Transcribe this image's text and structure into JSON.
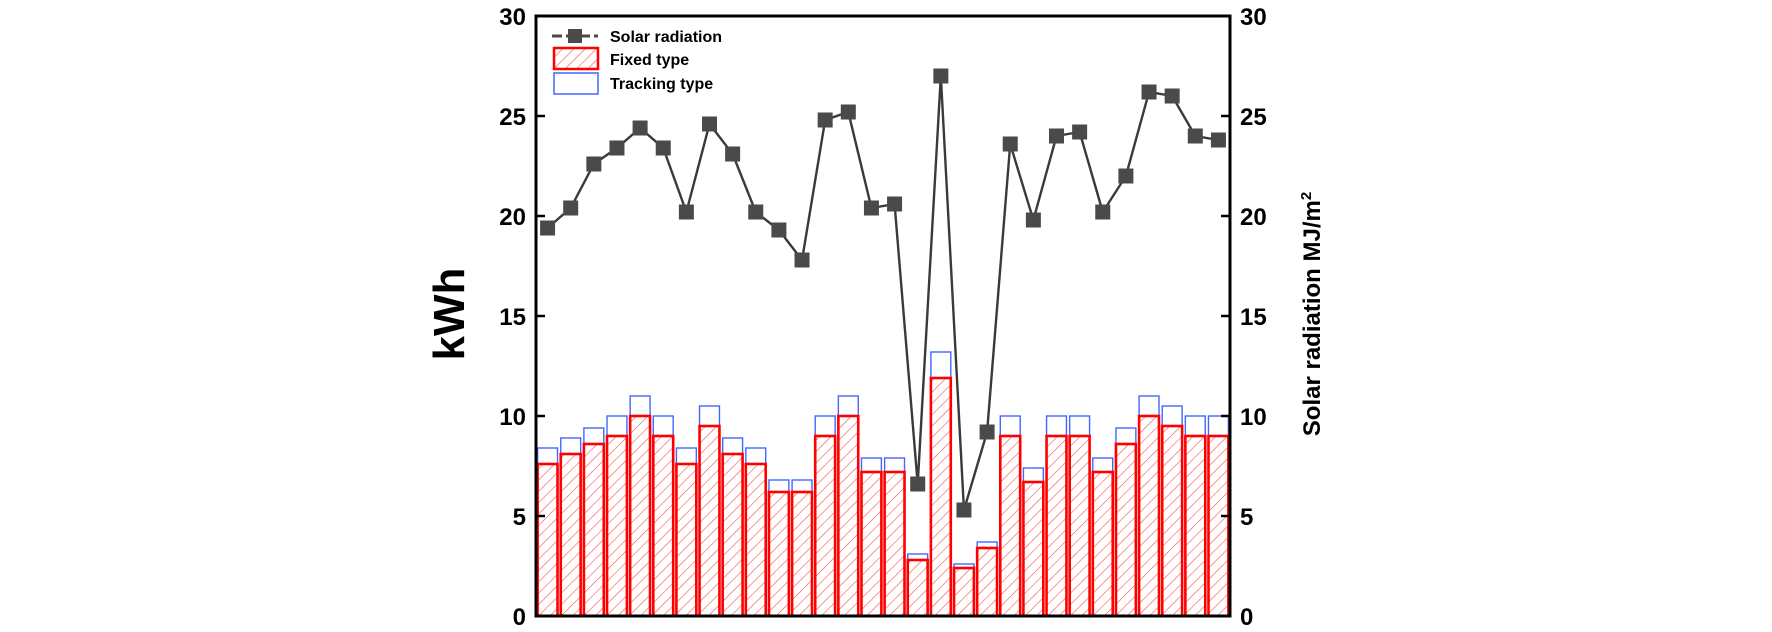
{
  "chart_data": {
    "type": "bar",
    "ylabel": "kWh",
    "ylabel_right": "Solar radiation MJ/m",
    "ylabel_right_superscript": "2",
    "ylim": [
      0,
      30
    ],
    "ylim_right": [
      0,
      30
    ],
    "yticks": [
      "0",
      "5",
      "10",
      "15",
      "20",
      "25",
      "30"
    ],
    "yticks_right": [
      "0",
      "5",
      "10",
      "15",
      "20",
      "25",
      "30"
    ],
    "grid": false,
    "legend_position": "top-left",
    "series": [
      {
        "name": "Solar radiation",
        "type": "line",
        "axis": "right",
        "color": "#4a4a4a",
        "marker": "square",
        "values": [
          19.4,
          20.4,
          22.6,
          23.4,
          24.4,
          23.4,
          20.2,
          24.6,
          23.1,
          20.2,
          19.3,
          17.8,
          24.8,
          25.2,
          20.4,
          20.6,
          6.6,
          27.0,
          5.3,
          9.2,
          23.6,
          19.8,
          24.0,
          24.2,
          20.2,
          22.0,
          26.2,
          26.0,
          24.0,
          23.8
        ]
      },
      {
        "name": "Fixed type",
        "type": "bar",
        "axis": "left",
        "color": "#ff0000",
        "pattern": "hatched",
        "values": [
          7.6,
          8.1,
          8.6,
          9.0,
          10.0,
          9.0,
          7.6,
          9.5,
          8.1,
          7.6,
          6.2,
          6.2,
          9.0,
          10.0,
          7.2,
          7.2,
          2.8,
          11.9,
          2.4,
          3.4,
          9.0,
          6.7,
          9.0,
          9.0,
          7.2,
          8.6,
          10.0,
          9.5,
          9.0,
          9.0
        ]
      },
      {
        "name": "Tracking type",
        "type": "bar",
        "axis": "left",
        "color": "#0000ff",
        "pattern": "outline",
        "values": [
          8.4,
          8.9,
          9.4,
          10.0,
          11.0,
          10.0,
          8.4,
          10.5,
          8.9,
          8.4,
          6.8,
          6.8,
          10.0,
          11.0,
          7.9,
          7.9,
          3.1,
          13.2,
          2.6,
          3.7,
          10.0,
          7.4,
          10.0,
          10.0,
          7.9,
          9.4,
          11.0,
          10.5,
          10.0,
          10.0
        ]
      }
    ]
  }
}
